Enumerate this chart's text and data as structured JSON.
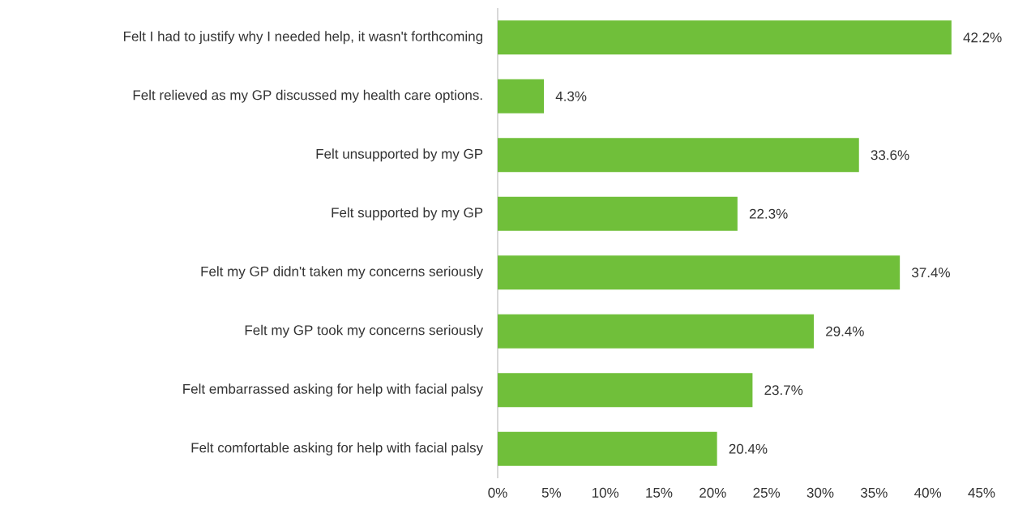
{
  "chart_data": {
    "type": "bar",
    "orientation": "horizontal",
    "categories": [
      "Felt I had to justify why I needed help, it wasn't forthcoming",
      "Felt relieved as my GP discussed my health care options.",
      "Felt unsupported by my GP",
      "Felt supported by my GP",
      "Felt my GP didn't taken my concerns seriously",
      "Felt my GP took my concerns seriously",
      "Felt embarrassed asking for help with facial palsy",
      "Felt comfortable asking for help with facial palsy"
    ],
    "values": [
      42.2,
      4.3,
      33.6,
      22.3,
      37.4,
      29.4,
      23.7,
      20.4
    ],
    "value_labels": [
      "42.2%",
      "4.3%",
      "33.6%",
      "22.3%",
      "37.4%",
      "29.4%",
      "23.7%",
      "20.4%"
    ],
    "color": "#70bf3a",
    "xlim": [
      0,
      45
    ],
    "xticks": [
      {
        "value": 0,
        "label": "0%"
      },
      {
        "value": 5,
        "label": "5%"
      },
      {
        "value": 10,
        "label": "10%"
      },
      {
        "value": 15,
        "label": "15%"
      },
      {
        "value": 20,
        "label": "20%"
      },
      {
        "value": 25,
        "label": "25%"
      },
      {
        "value": 30,
        "label": "30%"
      },
      {
        "value": 35,
        "label": "35%"
      },
      {
        "value": 40,
        "label": "40%"
      },
      {
        "value": 45,
        "label": "45%"
      }
    ],
    "grid": false
  }
}
